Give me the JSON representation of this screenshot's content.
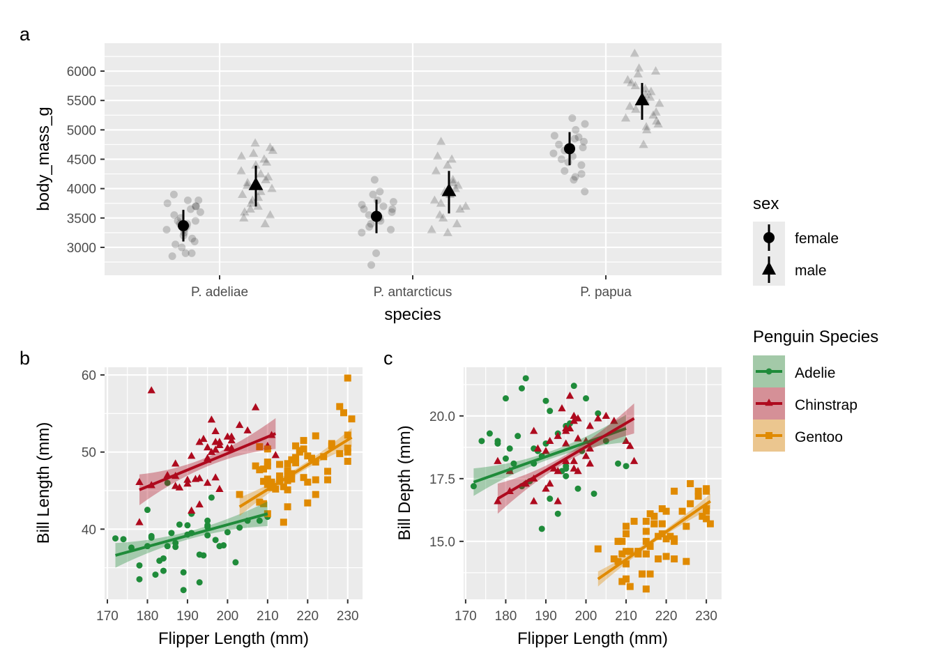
{
  "chart_data": [
    {
      "panel_tag": "a",
      "type": "scatter",
      "xlabel": "species",
      "ylabel": "body_mass_g",
      "categories": [
        "P. adeliae",
        "P. antarcticus",
        "P. papua"
      ],
      "ylim": [
        2525,
        6475
      ],
      "yticks": [
        3000,
        3500,
        4000,
        4500,
        5000,
        5500,
        6000
      ],
      "ytick_labels": [
        "3000",
        "3500",
        "4000",
        "4500",
        "5000",
        "5500",
        "6000"
      ],
      "grid": true,
      "legend": {
        "title": "sex",
        "placement": "right",
        "entries": [
          {
            "label": "female",
            "shape": "circle"
          },
          {
            "label": "male",
            "shape": "triangle"
          }
        ]
      },
      "summary": [
        {
          "category": "P. adeliae",
          "sex": "female",
          "mean": 3369,
          "sd": 269
        },
        {
          "category": "P. adeliae",
          "sex": "male",
          "mean": 4043,
          "sd": 347
        },
        {
          "category": "P. antarcticus",
          "sex": "female",
          "mean": 3527,
          "sd": 285
        },
        {
          "category": "P. antarcticus",
          "sex": "male",
          "mean": 3939,
          "sd": 362
        },
        {
          "category": "P. papua",
          "sex": "female",
          "mean": 4680,
          "sd": 282
        },
        {
          "category": "P. papua",
          "sex": "male",
          "mean": 5485,
          "sd": 313
        }
      ],
      "points": [
        {
          "category": "P. adeliae",
          "sex": "female",
          "values": [
            2850,
            2900,
            2900,
            3000,
            3050,
            3100,
            3150,
            3200,
            3250,
            3300,
            3300,
            3350,
            3400,
            3400,
            3450,
            3450,
            3500,
            3550,
            3600,
            3650,
            3700,
            3700,
            3750,
            3800,
            3800,
            3900
          ]
        },
        {
          "category": "P. adeliae",
          "sex": "male",
          "values": [
            3400,
            3500,
            3550,
            3600,
            3650,
            3700,
            3750,
            3800,
            3850,
            3900,
            3950,
            4000,
            4050,
            4100,
            4150,
            4200,
            4250,
            4300,
            4400,
            4450,
            4500,
            4550,
            4600,
            4650,
            4700,
            4775
          ]
        },
        {
          "category": "P. antarcticus",
          "sex": "female",
          "values": [
            2700,
            2900,
            3250,
            3300,
            3350,
            3400,
            3450,
            3500,
            3525,
            3550,
            3600,
            3650,
            3650,
            3700,
            3725,
            3775,
            3800,
            3900,
            3950,
            4150
          ]
        },
        {
          "category": "P. antarcticus",
          "sex": "male",
          "values": [
            3250,
            3300,
            3400,
            3500,
            3550,
            3650,
            3700,
            3750,
            3800,
            3900,
            3950,
            4000,
            4050,
            4100,
            4150,
            4300,
            4400,
            4500,
            4550,
            4800
          ]
        },
        {
          "category": "P. papua",
          "sex": "female",
          "values": [
            3950,
            4150,
            4200,
            4250,
            4300,
            4400,
            4450,
            4500,
            4550,
            4600,
            4650,
            4700,
            4750,
            4800,
            4850,
            4875,
            4900,
            5000,
            5100,
            5200
          ]
        },
        {
          "category": "P. papua",
          "sex": "male",
          "values": [
            4750,
            5000,
            5050,
            5100,
            5150,
            5200,
            5250,
            5300,
            5350,
            5400,
            5450,
            5500,
            5550,
            5600,
            5650,
            5700,
            5750,
            5800,
            5850,
            5950,
            6000,
            6050,
            6300
          ]
        }
      ]
    },
    {
      "panel_tag": "b",
      "type": "scatter",
      "xlabel": "Flipper Length (mm)",
      "ylabel": "Bill Length (mm)",
      "xlim": [
        169.3,
        233.7
      ],
      "ylim": [
        30.9,
        61.0
      ],
      "xticks": [
        170,
        180,
        190,
        200,
        210,
        220,
        230
      ],
      "xtick_labels": [
        "170",
        "180",
        "190",
        "200",
        "210",
        "220",
        "230"
      ],
      "yticks": [
        40,
        50,
        60
      ],
      "ytick_labels": [
        "40",
        "50",
        "60"
      ],
      "grid": true,
      "fits": [
        {
          "species": "Adelie",
          "x": [
            172,
            210
          ],
          "y": [
            36.6,
            42.0
          ],
          "ci_center": 0.5,
          "ci_end": 1.6
        },
        {
          "species": "Chinstrap",
          "x": [
            178,
            212
          ],
          "y": [
            45.1,
            52.4
          ],
          "ci_center": 0.6,
          "ci_end": 2.0
        },
        {
          "species": "Gentoo",
          "x": [
            203,
            231
          ],
          "y": [
            42.9,
            51.9
          ],
          "ci_center": 0.4,
          "ci_end": 1.2
        }
      ]
    },
    {
      "panel_tag": "c",
      "type": "scatter",
      "xlabel": "Flipper Length (mm)",
      "ylabel": "Bill Depth (mm)",
      "xlim": [
        169.5,
        233.8
      ],
      "ylim": [
        12.69,
        21.94
      ],
      "xticks": [
        170,
        180,
        190,
        200,
        210,
        220,
        230
      ],
      "xtick_labels": [
        "170",
        "180",
        "190",
        "200",
        "210",
        "220",
        "230"
      ],
      "yticks": [
        15,
        17.5,
        20
      ],
      "ytick_labels": [
        "15.0",
        "17.5",
        "20.0"
      ],
      "grid": true,
      "fits": [
        {
          "species": "Adelie",
          "x": [
            172,
            210
          ],
          "y": [
            17.36,
            19.5
          ],
          "ci_center": 0.15,
          "ci_end": 0.55
        },
        {
          "species": "Chinstrap",
          "x": [
            178,
            212
          ],
          "y": [
            16.7,
            19.9
          ],
          "ci_center": 0.15,
          "ci_end": 0.6
        },
        {
          "species": "Gentoo",
          "x": [
            203,
            231
          ],
          "y": [
            13.5,
            16.6
          ],
          "ci_center": 0.1,
          "ci_end": 0.3
        }
      ]
    }
  ],
  "species_legend": {
    "title": "Penguin Species",
    "placement": "right",
    "entries": [
      {
        "label": "Adelie",
        "color": "#1f8b3a",
        "band": "#a3c9a8",
        "shape": "circle"
      },
      {
        "label": "Chinstrap",
        "color": "#ae0a1e",
        "band": "#d59097",
        "shape": "triangle"
      },
      {
        "label": "Gentoo",
        "color": "#e08a00",
        "band": "#ebc68f",
        "shape": "square"
      }
    ]
  },
  "penguins": {
    "columns": [
      "flipper_length_mm",
      "bill_length_mm",
      "bill_depth_mm"
    ],
    "Adelie": [
      [
        181,
        39.1,
        18.7
      ],
      [
        186,
        39.5,
        17.4
      ],
      [
        195,
        40.3,
        18
      ],
      [
        193,
        36.7,
        19.3
      ],
      [
        190,
        39.3,
        20.6
      ],
      [
        181,
        38.9,
        17.8
      ],
      [
        195,
        39.2,
        19.6
      ],
      [
        182,
        34.1,
        18.1
      ],
      [
        191,
        42,
        20.2
      ],
      [
        198,
        37.8,
        17.1
      ],
      [
        185,
        37.8,
        17.3
      ],
      [
        195,
        41.1,
        17.6
      ],
      [
        197,
        38.6,
        21.2
      ],
      [
        184,
        34.6,
        21.1
      ],
      [
        194,
        36.6,
        17.8
      ],
      [
        174,
        38.7,
        19
      ],
      [
        180,
        42.5,
        20.7
      ],
      [
        189,
        34.4,
        18.4
      ],
      [
        185,
        46,
        21.5
      ],
      [
        180,
        37.8,
        18.3
      ],
      [
        187,
        37.7,
        18.7
      ],
      [
        183,
        35.9,
        19.2
      ],
      [
        187,
        38.2,
        18.1
      ],
      [
        172,
        38.8,
        17.2
      ],
      [
        178,
        35.3,
        18.9
      ],
      [
        188,
        40.6,
        18.6
      ],
      [
        195,
        40.5,
        17.9
      ],
      [
        199,
        37.9,
        18.6
      ],
      [
        190,
        40.5,
        18.9
      ],
      [
        191,
        39.5,
        16.7
      ],
      [
        208,
        41.1,
        18.1
      ],
      [
        202,
        35.7,
        16.9
      ],
      [
        210,
        41.6,
        18
      ],
      [
        196,
        44.1,
        19.7
      ],
      [
        193,
        33.1,
        16.1
      ],
      [
        176,
        37.6,
        19.3
      ],
      [
        205,
        41.1,
        19
      ],
      [
        184,
        36.2,
        17.2
      ],
      [
        203,
        40.2,
        20.1
      ],
      [
        178,
        33.5,
        19
      ],
      [
        200,
        39.6,
        20.7
      ],
      [
        189,
        32.1,
        15.5
      ]
    ],
    "Chinstrap": [
      [
        192,
        46.5,
        17.9
      ],
      [
        196,
        50,
        19.5
      ],
      [
        193,
        51.3,
        19.2
      ],
      [
        188,
        45.4,
        18.7
      ],
      [
        197,
        52.7,
        19.8
      ],
      [
        198,
        45.2,
        17.8
      ],
      [
        178,
        46.1,
        18.2
      ],
      [
        197,
        51.3,
        18.2
      ],
      [
        195,
        46,
        18.9
      ],
      [
        198,
        51.3,
        19.9
      ],
      [
        193,
        46.6,
        17.8
      ],
      [
        194,
        51.7,
        20.3
      ],
      [
        185,
        47,
        17.3
      ],
      [
        201,
        52,
        18.1
      ],
      [
        190,
        45.9,
        17.1
      ],
      [
        201,
        50.5,
        19.6
      ],
      [
        197,
        50.3,
        20
      ],
      [
        181,
        58,
        17.8
      ],
      [
        190,
        46.4,
        18.6
      ],
      [
        195,
        49.2,
        18.2
      ],
      [
        191,
        42.4,
        17.3
      ],
      [
        187,
        48.5,
        17.5
      ],
      [
        193,
        43.2,
        16.6
      ],
      [
        195,
        50.6,
        19.4
      ],
      [
        197,
        46.7,
        17.9
      ],
      [
        200,
        52,
        19
      ],
      [
        200,
        50.5,
        18.4
      ],
      [
        191,
        49.5,
        19
      ],
      [
        205,
        52.8,
        20
      ],
      [
        187,
        45.6,
        19.4
      ],
      [
        201,
        51.5,
        18.7
      ],
      [
        187,
        46.9,
        16.6
      ],
      [
        203,
        53.5,
        19.9
      ],
      [
        195,
        49,
        19.5
      ],
      [
        210,
        50.8,
        19
      ],
      [
        198,
        50.9,
        19.1
      ],
      [
        207,
        55.8,
        19.8
      ],
      [
        212,
        49.6,
        18.2
      ],
      [
        178,
        40.9,
        16.6
      ],
      [
        196,
        54.2,
        20.8
      ],
      [
        181,
        45.7,
        17
      ],
      [
        211,
        52.2,
        18.8
      ]
    ],
    "Gentoo": [
      [
        211,
        46.1,
        13.2
      ],
      [
        230,
        50,
        16.3
      ],
      [
        210,
        48.7,
        14.1
      ],
      [
        218,
        50,
        15.2
      ],
      [
        215,
        47.6,
        14.5
      ],
      [
        210,
        46.5,
        13.5
      ],
      [
        211,
        45.4,
        14.6
      ],
      [
        219,
        46.7,
        15.3
      ],
      [
        209,
        43.3,
        13.4
      ],
      [
        215,
        46.8,
        15.4
      ],
      [
        214,
        40.9,
        13.7
      ],
      [
        216,
        49,
        16.1
      ],
      [
        214,
        45.5,
        13.7
      ],
      [
        213,
        48.4,
        14.6
      ],
      [
        210,
        45.8,
        14.6
      ],
      [
        217,
        49.3,
        15.7
      ],
      [
        210,
        42,
        13.5
      ],
      [
        221,
        49.2,
        15.2
      ],
      [
        209,
        46.2,
        14.5
      ],
      [
        222,
        48.7,
        15.1
      ],
      [
        218,
        50.2,
        14.3
      ],
      [
        215,
        45.1,
        14.5
      ],
      [
        213,
        46.5,
        14.5
      ],
      [
        215,
        46.3,
        15.8
      ],
      [
        215,
        42.9,
        13.1
      ],
      [
        220,
        46.1,
        15.1
      ],
      [
        222,
        44.5,
        14.3
      ],
      [
        209,
        47.8,
        15
      ],
      [
        207,
        48.2,
        14.3
      ],
      [
        230,
        50.5,
        15.9
      ],
      [
        220,
        49.5,
        16.2
      ],
      [
        220,
        43.4,
        14.4
      ],
      [
        213,
        46.2,
        14.5
      ],
      [
        219,
        51.5,
        16.3
      ],
      [
        208,
        43.5,
        14.2
      ],
      [
        208,
        50.7,
        15
      ],
      [
        208,
        47.7,
        15
      ],
      [
        225,
        46.4,
        15.6
      ],
      [
        210,
        48.2,
        15.6
      ],
      [
        216,
        46.5,
        14.8
      ],
      [
        222,
        46.4,
        15
      ],
      [
        217,
        48.6,
        16
      ],
      [
        225,
        47.5,
        14.2
      ],
      [
        213,
        46.9,
        14.6
      ],
      [
        215,
        48.5,
        15
      ],
      [
        210,
        50.4,
        15.3
      ],
      [
        230,
        59.6,
        17
      ],
      [
        228,
        55.9,
        17
      ],
      [
        229,
        55.1,
        16
      ],
      [
        231,
        54.3,
        15.7
      ],
      [
        228,
        49.8,
        16.8
      ],
      [
        226,
        51.1,
        16.5
      ],
      [
        230,
        52.2,
        17.1
      ],
      [
        212,
        45.2,
        15.8
      ],
      [
        224,
        49.4,
        16.2
      ],
      [
        203,
        44.5,
        14.7
      ],
      [
        226,
        50.8,
        17.3
      ],
      [
        222,
        52.1,
        17
      ],
      [
        219,
        50.4,
        15.7
      ],
      [
        216,
        47.2,
        13.7
      ],
      [
        230,
        48.8,
        16.2
      ],
      [
        217,
        50.8,
        15.7
      ]
    ]
  }
}
